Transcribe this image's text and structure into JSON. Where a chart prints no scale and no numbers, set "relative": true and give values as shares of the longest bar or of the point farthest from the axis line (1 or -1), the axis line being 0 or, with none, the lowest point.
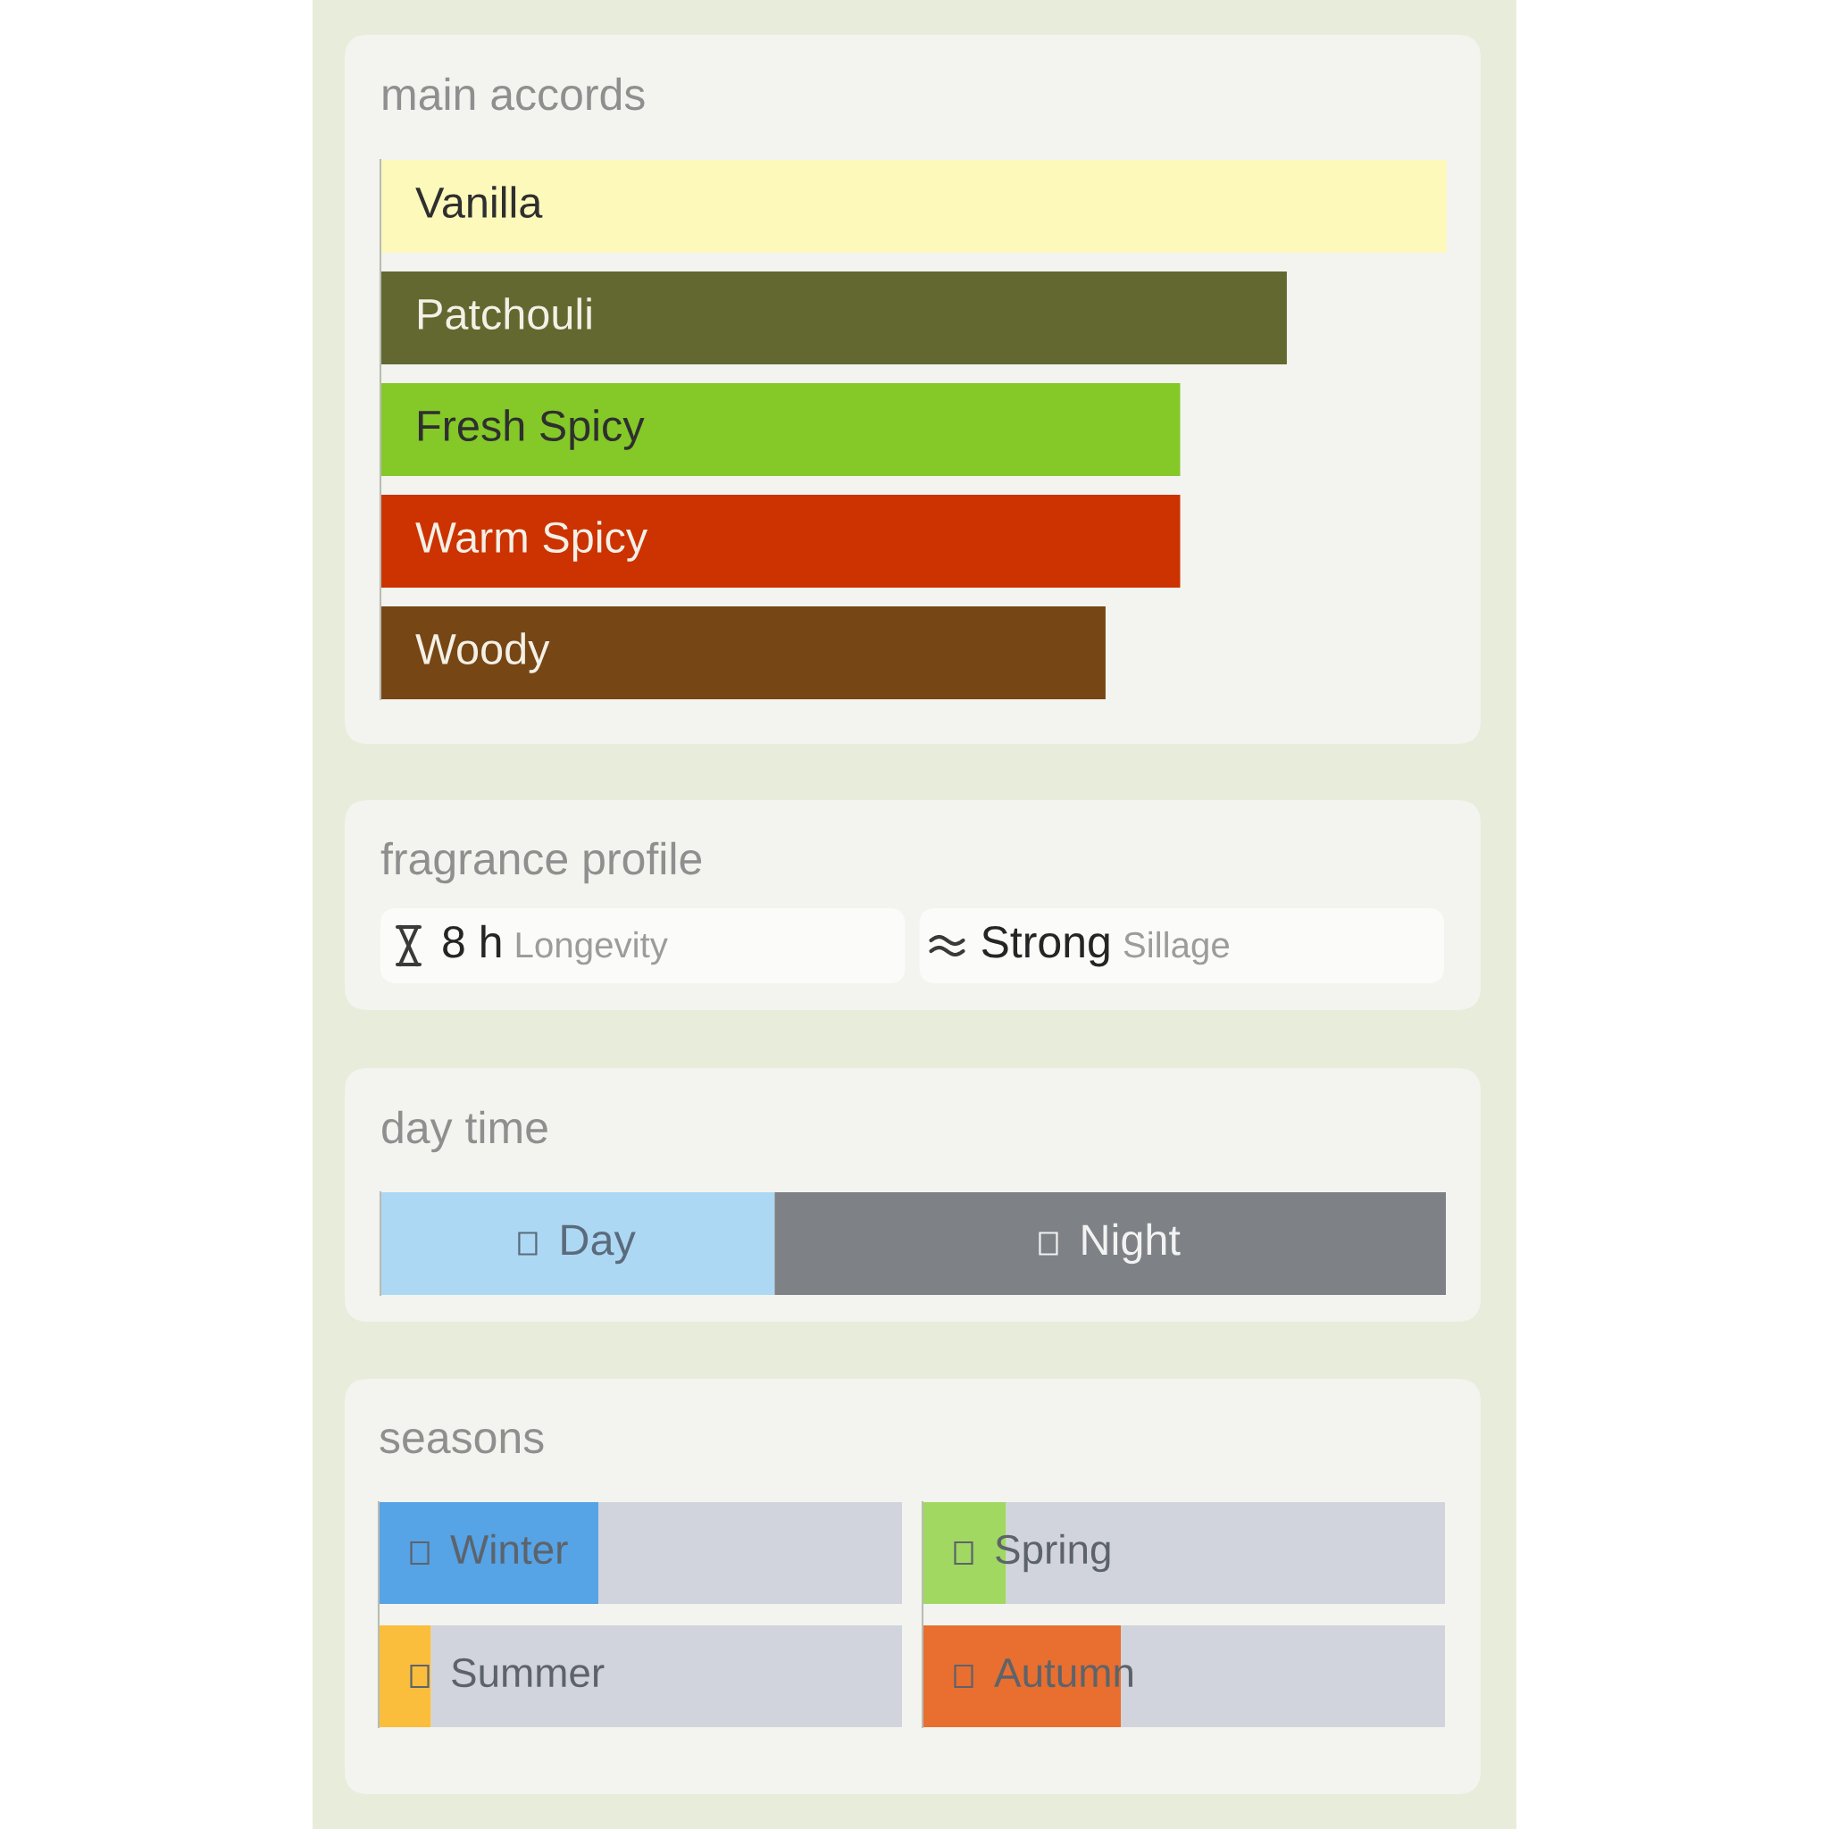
{
  "chart_data": [
    {
      "type": "bar",
      "orientation": "horizontal",
      "relative": true,
      "title": "main accords",
      "categories": [
        "Vanilla",
        "Patchouli",
        "Fresh Spicy",
        "Warm Spicy",
        "Woody"
      ],
      "values": [
        1,
        0.85,
        0.75,
        0.75,
        0.68
      ],
      "colors": [
        "#fdf9bb",
        "#636830",
        "#84c928",
        "#cc3300",
        "#774615"
      ]
    },
    {
      "type": "other",
      "title": "fragrance profile",
      "annotations": [
        "8 h",
        "Longevity",
        "Strong",
        "Sillage"
      ]
    },
    {
      "type": "bar",
      "orientation": "horizontal",
      "stacked": true,
      "relative": true,
      "title": "day time",
      "categories": [
        null
      ],
      "series": [
        {
          "name": "Day",
          "color": "#add8f4",
          "values": [
            0.37
          ]
        },
        {
          "name": "Night",
          "color": "#7e8186",
          "values": [
            0.63
          ]
        }
      ]
    },
    {
      "type": "bar",
      "orientation": "horizontal",
      "stacked": true,
      "relative": true,
      "title": "seasons",
      "categories": [
        "Winter",
        "Summer"
      ],
      "series": [
        {
          "colors": [
            "#56a3e6",
            "#fbbd3c"
          ],
          "values": [
            0.42,
            0.1
          ]
        },
        {
          "color": "#d1d4dc",
          "values": [
            0.58,
            0.9
          ]
        }
      ]
    },
    {
      "type": "bar",
      "orientation": "horizontal",
      "stacked": true,
      "relative": true,
      "categories": [
        "Spring",
        "Autumn"
      ],
      "series": [
        {
          "colors": [
            "#a0d862",
            "#e86f30"
          ],
          "values": [
            0.16,
            0.38
          ]
        },
        {
          "color": "#d1d4dc",
          "values": [
            0.84,
            0.62
          ]
        }
      ]
    }
  ]
}
